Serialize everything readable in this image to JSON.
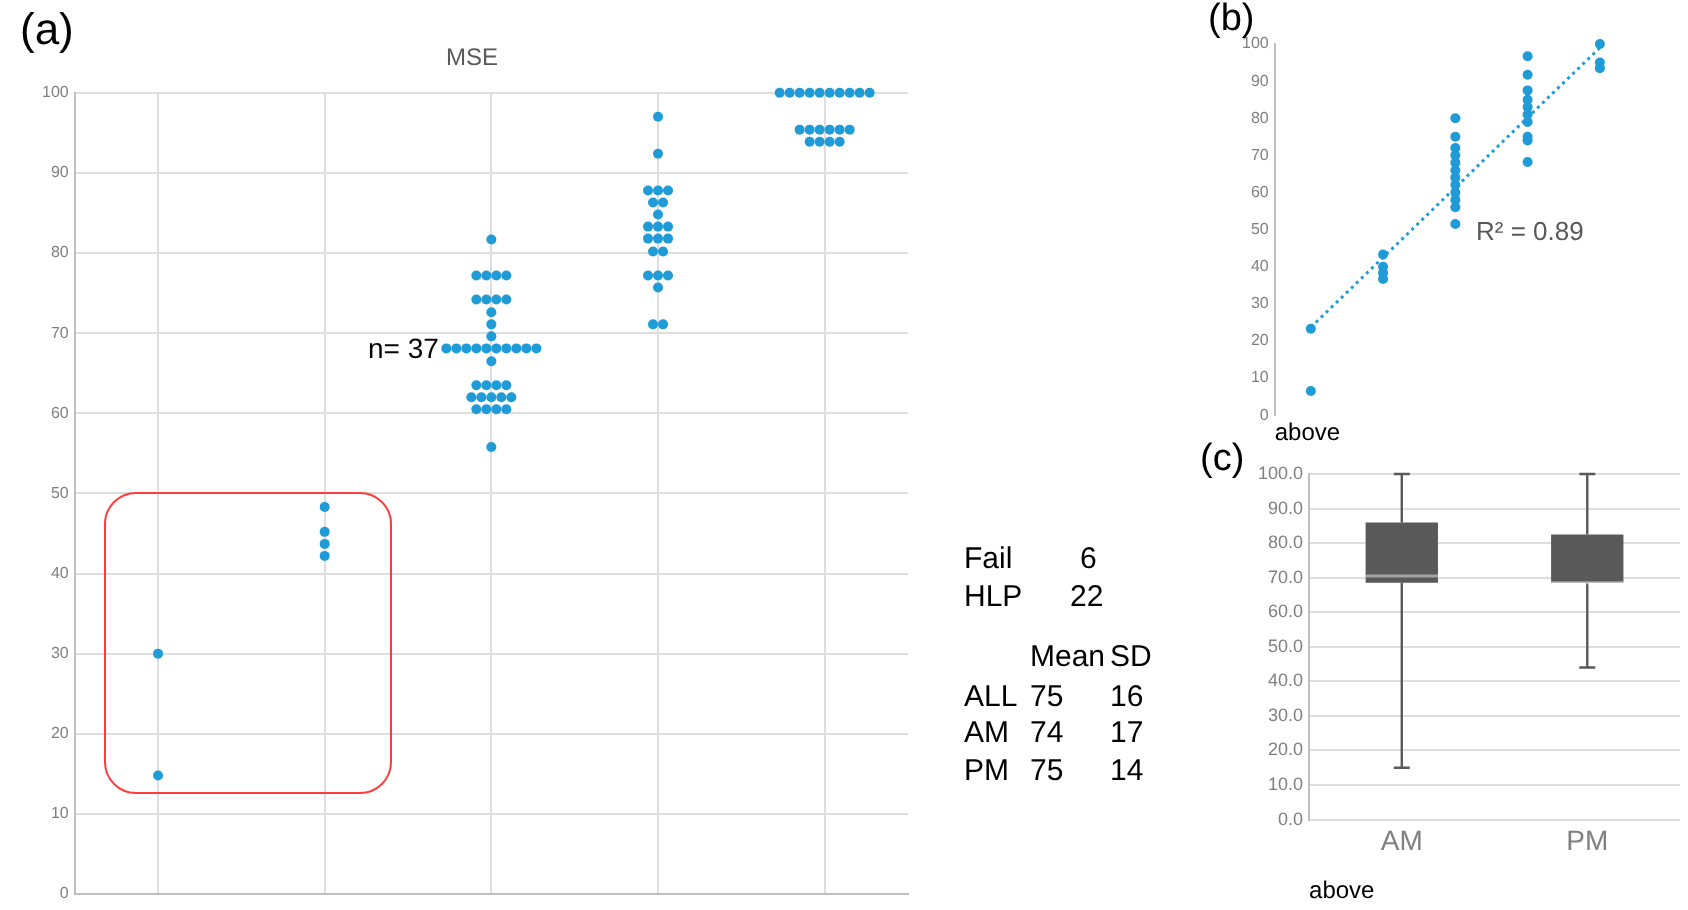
{
  "chart_data": [
    {
      "type": "scatter",
      "title": "MSE",
      "annotations": [
        "(a)",
        "n= 37"
      ],
      "categories": [
        null,
        null,
        null,
        null,
        null
      ],
      "color": "#1f9bd7",
      "series": [
        {
          "values": [
            30,
            48.3,
            81.7,
            97,
            100
          ]
        },
        {
          "values": [
            14.8,
            45.2,
            77.2,
            92.4,
            100
          ]
        },
        {
          "values": [
            null,
            43.7,
            77.2,
            87.8,
            100
          ]
        },
        {
          "values": [
            null,
            42.2,
            77.2,
            87.8,
            100
          ]
        },
        {
          "values": [
            null,
            null,
            77.2,
            87.8,
            100
          ]
        },
        {
          "values": [
            null,
            null,
            74.2,
            86.3,
            100
          ]
        },
        {
          "values": [
            null,
            null,
            74.2,
            86.3,
            100
          ]
        },
        {
          "values": [
            null,
            null,
            74.2,
            84.8,
            100
          ]
        },
        {
          "values": [
            null,
            null,
            74.2,
            83.3,
            100
          ]
        },
        {
          "values": [
            null,
            null,
            72.6,
            83.3,
            100
          ]
        },
        {
          "values": [
            null,
            null,
            71.1,
            83.3,
            null
          ]
        },
        {
          "values": [
            null,
            null,
            69.6,
            81.8,
            null
          ]
        },
        {
          "values": [
            null,
            null,
            68.1,
            81.8,
            null
          ]
        },
        {
          "values": [
            null,
            null,
            68.1,
            81.8,
            null
          ]
        },
        {
          "values": [
            null,
            null,
            68.1,
            80.2,
            null
          ]
        },
        {
          "values": [
            null,
            null,
            68.1,
            80.2,
            null
          ]
        },
        {
          "values": [
            null,
            null,
            68.1,
            77.2,
            95.4
          ]
        },
        {
          "values": [
            null,
            null,
            68.1,
            77.2,
            95.4
          ]
        },
        {
          "values": [
            null,
            null,
            68.1,
            77.2,
            95.4
          ]
        },
        {
          "values": [
            null,
            null,
            68.1,
            75.7,
            95.4
          ]
        },
        {
          "values": [
            null,
            null,
            68.1,
            71.1,
            95.4
          ]
        },
        {
          "values": [
            null,
            null,
            68.1,
            71.1,
            95.4
          ]
        },
        {
          "values": [
            null,
            null,
            66.5,
            null,
            93.9
          ]
        },
        {
          "values": [
            null,
            null,
            63.5,
            null,
            93.9
          ]
        },
        {
          "values": [
            null,
            null,
            63.5,
            null,
            93.9
          ]
        },
        {
          "values": [
            null,
            null,
            63.5,
            null,
            93.9
          ]
        },
        {
          "values": [
            null,
            null,
            63.5,
            null,
            null
          ]
        },
        {
          "values": [
            null,
            null,
            62,
            null,
            null
          ]
        },
        {
          "values": [
            null,
            null,
            62,
            null,
            null
          ]
        },
        {
          "values": [
            null,
            null,
            62,
            null,
            null
          ]
        },
        {
          "values": [
            null,
            null,
            62,
            null,
            null
          ]
        },
        {
          "values": [
            null,
            null,
            62,
            null,
            null
          ]
        },
        {
          "values": [
            null,
            null,
            60.5,
            null,
            null
          ]
        },
        {
          "values": [
            null,
            null,
            60.5,
            null,
            null
          ]
        },
        {
          "values": [
            null,
            null,
            60.5,
            null,
            null
          ]
        },
        {
          "values": [
            null,
            null,
            60.5,
            null,
            null
          ]
        },
        {
          "values": [
            null,
            null,
            55.8,
            null,
            null
          ]
        }
      ],
      "ylim": [
        0,
        100
      ],
      "yticks": [
        0,
        10,
        20,
        30,
        40,
        50,
        60,
        70,
        80,
        90,
        100
      ],
      "grid": true,
      "tick_labels": "y",
      "marker": "circle"
    },
    {
      "type": "scatter",
      "xlabel": "above",
      "annotations": [
        "(b)",
        "R² = 0.89"
      ],
      "categories": [
        null,
        null,
        null,
        null,
        null
      ],
      "color": "#1f9bd7",
      "series": [
        {
          "values": [
            23.3,
            43.3,
            80,
            96.7,
            100
          ]
        },
        {
          "values": [
            6.5,
            40,
            75,
            91.7,
            95
          ]
        },
        {
          "values": [
            null,
            38.3,
            72,
            87.5,
            93.5
          ]
        },
        {
          "values": [
            null,
            36.7,
            70,
            85,
            null
          ]
        },
        {
          "values": [
            null,
            null,
            68,
            83,
            null
          ]
        },
        {
          "values": [
            null,
            null,
            66,
            81,
            null
          ]
        },
        {
          "values": [
            null,
            null,
            64,
            79,
            null
          ]
        },
        {
          "values": [
            null,
            null,
            62,
            75,
            null
          ]
        },
        {
          "values": [
            null,
            null,
            60,
            74,
            null
          ]
        },
        {
          "values": [
            null,
            null,
            58,
            68.2,
            null
          ]
        },
        {
          "values": [
            null,
            null,
            56,
            null,
            null
          ]
        },
        {
          "values": [
            null,
            null,
            51.5,
            null,
            null
          ]
        },
        {
          "type": "line",
          "values": [
            23.7,
            42.5,
            61.3,
            80.2,
            99
          ],
          "line_style": "dotted",
          "marker": "none"
        }
      ],
      "ylim": [
        0,
        100
      ],
      "yticks": [
        0,
        10,
        20,
        30,
        40,
        50,
        60,
        70,
        80,
        90,
        100
      ],
      "tick_labels": "y",
      "marker": "circle"
    },
    {
      "type": "other",
      "annotations": [
        "Fail",
        "6",
        "HLP",
        "22",
        "Mean",
        "SD",
        "ALL",
        "75",
        "16",
        "AM",
        "74",
        "17",
        "PM",
        "75",
        "14"
      ]
    },
    {
      "type": "box",
      "xlabel": "above",
      "annotations": [
        "(c)"
      ],
      "categories": [
        "AM",
        "PM"
      ],
      "color": "#595959",
      "boxes": [
        {
          "low": 15,
          "q1": 68.5,
          "median": 70.5,
          "q3": 86,
          "high": 100
        },
        {
          "low": 44,
          "q1": 68.5,
          "median": 68.5,
          "q3": 82.5,
          "high": 100
        }
      ],
      "ylim": [
        0,
        100
      ],
      "yticks": [
        {
          "value": 0,
          "label": "0.0"
        },
        {
          "value": 10,
          "label": "10.0"
        },
        {
          "value": 20,
          "label": "20.0"
        },
        {
          "value": 30,
          "label": "30.0"
        },
        {
          "value": 40,
          "label": "40.0"
        },
        {
          "value": 50,
          "label": "50.0"
        },
        {
          "value": 60,
          "label": "60.0"
        },
        {
          "value": 70,
          "label": "70.0"
        },
        {
          "value": 80,
          "label": "80.0"
        },
        {
          "value": 90,
          "label": "90.0"
        },
        {
          "value": 100,
          "label": "100.0"
        }
      ],
      "grid": "y"
    }
  ]
}
